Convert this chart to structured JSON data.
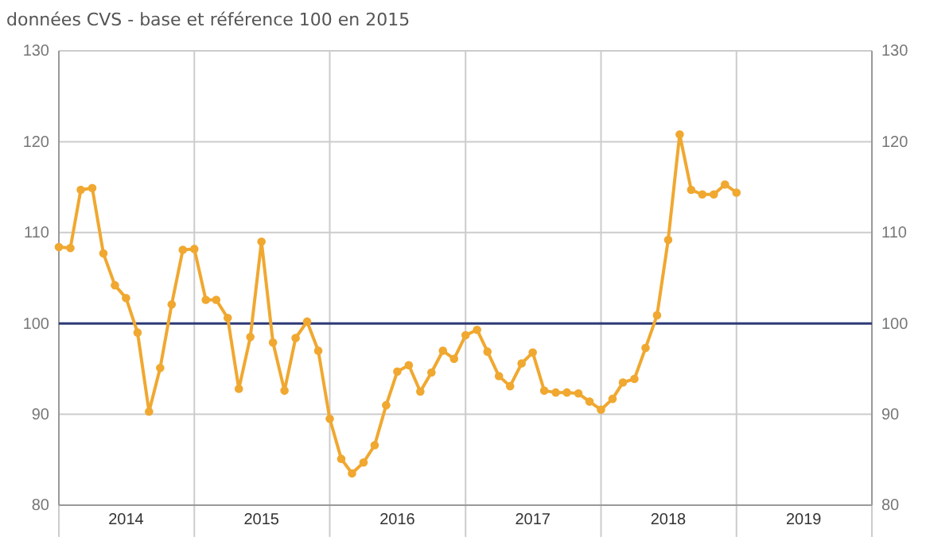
{
  "chart_data": {
    "type": "line",
    "title": "données CVS - base et référence 100 en 2015",
    "x": [
      "2014-01",
      "2014-02",
      "2014-03",
      "2014-04",
      "2014-05",
      "2014-06",
      "2014-07",
      "2014-08",
      "2014-09",
      "2014-10",
      "2014-11",
      "2014-12",
      "2015-01",
      "2015-02",
      "2015-03",
      "2015-04",
      "2015-05",
      "2015-06",
      "2015-07",
      "2015-08",
      "2015-09",
      "2015-10",
      "2015-11",
      "2015-12",
      "2016-01",
      "2016-02",
      "2016-03",
      "2016-04",
      "2016-05",
      "2016-06",
      "2016-07",
      "2016-08",
      "2016-09",
      "2016-10",
      "2016-11",
      "2016-12",
      "2017-01",
      "2017-02",
      "2017-03",
      "2017-04",
      "2017-05",
      "2017-06",
      "2017-07",
      "2017-08",
      "2017-09",
      "2017-10",
      "2017-11",
      "2017-12",
      "2018-01",
      "2018-02",
      "2018-03",
      "2018-04",
      "2018-05",
      "2018-06",
      "2018-07",
      "2018-08",
      "2018-09",
      "2018-10",
      "2018-11",
      "2018-12",
      "2019-01"
    ],
    "series": [
      {
        "color": "#f0a830",
        "values": [
          108.4,
          108.3,
          114.7,
          114.9,
          107.7,
          104.2,
          102.8,
          99.0,
          90.3,
          95.1,
          102.1,
          108.1,
          108.2,
          102.6,
          102.6,
          100.6,
          92.8,
          98.5,
          109.0,
          97.9,
          92.6,
          98.4,
          100.2,
          97.0,
          89.5,
          85.1,
          83.5,
          84.7,
          86.6,
          91.0,
          94.7,
          95.4,
          92.5,
          94.6,
          97.0,
          96.1,
          98.7,
          99.3,
          96.9,
          94.2,
          93.1,
          95.6,
          96.8,
          92.6,
          92.4,
          92.4,
          92.3,
          91.4,
          90.5,
          91.7,
          93.5,
          93.9,
          97.3,
          100.9,
          109.2,
          120.8,
          114.7,
          114.2,
          114.2,
          115.3,
          114.4
        ]
      }
    ],
    "xlim": [
      "2014-01",
      "2020-01"
    ],
    "xticks": [
      {
        "value": "2014-01",
        "label": null
      },
      {
        "value": "2014-07",
        "label": "2014"
      },
      {
        "value": "2015-01",
        "label": null
      },
      {
        "value": "2015-07",
        "label": "2015"
      },
      {
        "value": "2016-01",
        "label": null
      },
      {
        "value": "2016-07",
        "label": "2016"
      },
      {
        "value": "2017-01",
        "label": null
      },
      {
        "value": "2017-07",
        "label": "2017"
      },
      {
        "value": "2018-01",
        "label": null
      },
      {
        "value": "2018-07",
        "label": "2018"
      },
      {
        "value": "2019-01",
        "label": null
      },
      {
        "value": "2019-07",
        "label": "2019"
      },
      {
        "value": "2020-01",
        "label": null
      }
    ],
    "ylim": [
      80,
      130
    ],
    "yticks": [
      80,
      90,
      100,
      110,
      120,
      130
    ],
    "y2lim": [
      80,
      130
    ],
    "y2ticks": [
      80,
      90,
      100,
      110,
      120,
      130
    ],
    "ref_lines": [
      {
        "axis": "y",
        "value": 100,
        "label": null,
        "color": "#2e3a78"
      }
    ],
    "grid": true,
    "marker": "circle",
    "line_style": "solid"
  }
}
